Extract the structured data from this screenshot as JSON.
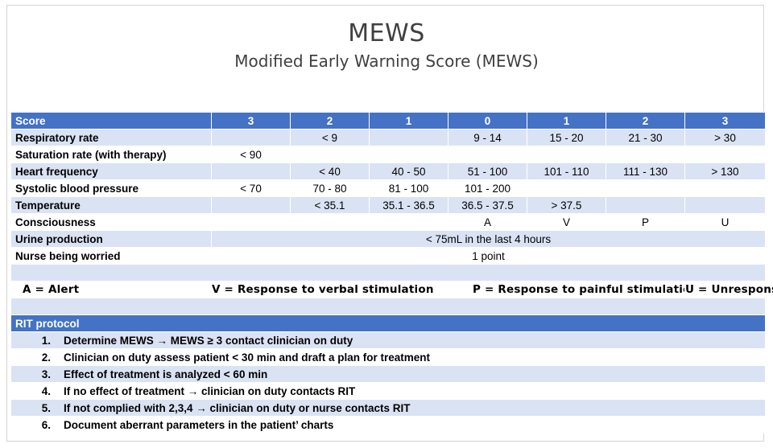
{
  "title": "MEWS",
  "subtitle": "Modified Early Warning Score (MEWS)",
  "table": {
    "header": [
      "Score",
      "3",
      "2",
      "1",
      "0",
      "1",
      "2",
      "3"
    ],
    "rows": [
      {
        "label": "Respiratory rate",
        "cells": [
          "",
          "< 9",
          "",
          "9 - 14",
          "15 - 20",
          "21 - 30",
          "> 30"
        ]
      },
      {
        "label": "Saturation rate (with therapy)",
        "cells": [
          "< 90",
          "",
          "",
          "",
          "",
          "",
          ""
        ]
      },
      {
        "label": "Heart frequency",
        "cells": [
          "",
          "< 40",
          "40 - 50",
          "51 - 100",
          "101 - 110",
          "111 - 130",
          "> 130"
        ]
      },
      {
        "label": "Systolic blood pressure",
        "cells": [
          "< 70",
          "70 - 80",
          "81 - 100",
          "101 - 200",
          "",
          "",
          ""
        ]
      },
      {
        "label": "Temperature",
        "cells": [
          "",
          "< 35.1",
          "35.1 - 36.5",
          "36.5 - 37.5",
          "> 37.5",
          "",
          ""
        ]
      },
      {
        "label": "Consciousness",
        "cells": [
          "",
          "",
          "",
          "A",
          "V",
          "P",
          "U"
        ]
      }
    ],
    "urine": {
      "label": "Urine production",
      "value": "< 75mL in the last 4 hours"
    },
    "nurse": {
      "label": "Nurse being worried",
      "value": "1 point"
    }
  },
  "legend": {
    "a": "A = Alert",
    "v": "V = Response to verbal stimulation",
    "p": "P = Response to painful stimulation",
    "u": "U = Unresponsive"
  },
  "rit": {
    "heading": "RIT protocol",
    "steps": [
      {
        "num": "1.",
        "text": "Determine MEWS → MEWS ≥ 3 contact clinician on duty"
      },
      {
        "num": "2.",
        "text": "Clinician on duty assess patient < 30 min and draft a plan for treatment"
      },
      {
        "num": "3.",
        "text": "Effect of treatment is analyzed < 60 min"
      },
      {
        "num": "4.",
        "text": "If no effect of treatment → clinician on duty contacts RIT"
      },
      {
        "num": "5.",
        "text": "If not complied with 2,3,4 → clinician on duty or nurse contacts RIT"
      },
      {
        "num": "6.",
        "text": "Document aberrant parameters in the patient’ charts"
      }
    ]
  },
  "colors": {
    "header_blue": "#4472c4",
    "row_light_blue": "#dae3f3",
    "title_gray": "#404040"
  }
}
